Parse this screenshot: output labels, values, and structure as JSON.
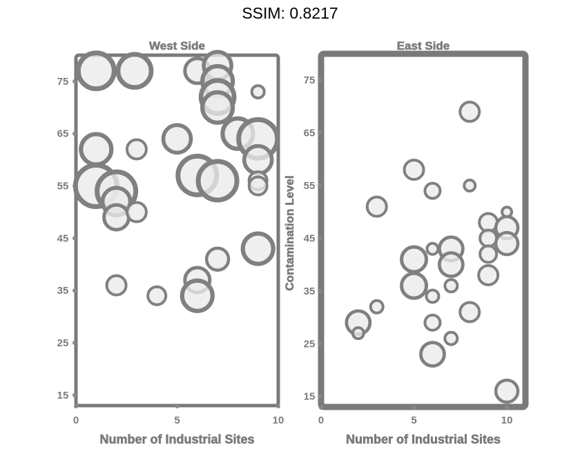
{
  "header": {
    "title": "SSIM: 0.8217"
  },
  "colors": {
    "bubble_fill": "#ebebeb",
    "bubble_stroke": "#808080",
    "axis": "#7a7a7a",
    "background": "#ffffff"
  },
  "chart_data": [
    {
      "type": "scatter",
      "title": "West Side",
      "xlabel": "Number of Industrial Sites",
      "ylabel": "",
      "xlim": [
        0,
        10
      ],
      "ylim": [
        13,
        80
      ],
      "x_ticks": [
        0,
        5,
        10
      ],
      "y_ticks": [
        "15",
        "25",
        "35",
        "45",
        "55",
        "65",
        "75"
      ],
      "grid": false,
      "series": [
        {
          "points": [
            {
              "x": 1.0,
              "y": 77,
              "size": 26
            },
            {
              "x": 2.9,
              "y": 77,
              "size": 24
            },
            {
              "x": 6.0,
              "y": 77,
              "size": 18
            },
            {
              "x": 7.0,
              "y": 78,
              "size": 20
            },
            {
              "x": 7.0,
              "y": 75,
              "size": 22
            },
            {
              "x": 9.0,
              "y": 73,
              "size": 9
            },
            {
              "x": 7.0,
              "y": 72,
              "size": 24
            },
            {
              "x": 7.0,
              "y": 70,
              "size": 22
            },
            {
              "x": 8.0,
              "y": 65,
              "size": 22
            },
            {
              "x": 9.0,
              "y": 64,
              "size": 28
            },
            {
              "x": 5.0,
              "y": 64,
              "size": 20
            },
            {
              "x": 1.0,
              "y": 62,
              "size": 22
            },
            {
              "x": 3.0,
              "y": 62,
              "size": 14
            },
            {
              "x": 9.0,
              "y": 60,
              "size": 20
            },
            {
              "x": 6.0,
              "y": 57,
              "size": 28
            },
            {
              "x": 7.0,
              "y": 56,
              "size": 28
            },
            {
              "x": 9.0,
              "y": 56,
              "size": 13
            },
            {
              "x": 9.0,
              "y": 55,
              "size": 13
            },
            {
              "x": 1.0,
              "y": 55,
              "size": 30
            },
            {
              "x": 2.0,
              "y": 54,
              "size": 28
            },
            {
              "x": 2.0,
              "y": 52,
              "size": 20
            },
            {
              "x": 2.0,
              "y": 49,
              "size": 18
            },
            {
              "x": 3.0,
              "y": 50,
              "size": 14
            },
            {
              "x": 9.0,
              "y": 43,
              "size": 22
            },
            {
              "x": 7.0,
              "y": 41,
              "size": 16
            },
            {
              "x": 6.0,
              "y": 37,
              "size": 18
            },
            {
              "x": 2.0,
              "y": 36,
              "size": 14
            },
            {
              "x": 6.0,
              "y": 34,
              "size": 22
            },
            {
              "x": 4.0,
              "y": 34,
              "size": 13
            }
          ]
        }
      ]
    },
    {
      "type": "scatter",
      "title": "East Side",
      "xlabel": "Number of Industrial Sites",
      "ylabel": "Contamination Level",
      "xlim": [
        0,
        11
      ],
      "ylim": [
        13,
        80
      ],
      "x_ticks": [
        0,
        5,
        10
      ],
      "y_ticks": [
        "15",
        "25",
        "35",
        "45",
        "55",
        "65",
        "75"
      ],
      "grid": false,
      "series": [
        {
          "points": [
            {
              "x": 8.0,
              "y": 69,
              "size": 14
            },
            {
              "x": 5.0,
              "y": 58,
              "size": 14
            },
            {
              "x": 6.0,
              "y": 54,
              "size": 11
            },
            {
              "x": 8.0,
              "y": 55,
              "size": 8
            },
            {
              "x": 3.0,
              "y": 51,
              "size": 14
            },
            {
              "x": 10.0,
              "y": 50,
              "size": 7
            },
            {
              "x": 9.0,
              "y": 48,
              "size": 13
            },
            {
              "x": 10.0,
              "y": 47,
              "size": 16
            },
            {
              "x": 9.0,
              "y": 45,
              "size": 12
            },
            {
              "x": 10.0,
              "y": 44,
              "size": 16
            },
            {
              "x": 6.0,
              "y": 43,
              "size": 8
            },
            {
              "x": 7.0,
              "y": 43,
              "size": 17
            },
            {
              "x": 9.0,
              "y": 42,
              "size": 12
            },
            {
              "x": 5.0,
              "y": 41,
              "size": 18
            },
            {
              "x": 7.0,
              "y": 40,
              "size": 17
            },
            {
              "x": 9.0,
              "y": 38,
              "size": 14
            },
            {
              "x": 5.0,
              "y": 36,
              "size": 18
            },
            {
              "x": 7.0,
              "y": 36,
              "size": 9
            },
            {
              "x": 6.0,
              "y": 34,
              "size": 9
            },
            {
              "x": 3.0,
              "y": 32,
              "size": 9
            },
            {
              "x": 8.0,
              "y": 31,
              "size": 14
            },
            {
              "x": 2.0,
              "y": 29,
              "size": 17
            },
            {
              "x": 6.0,
              "y": 29,
              "size": 11
            },
            {
              "x": 2.0,
              "y": 27,
              "size": 8
            },
            {
              "x": 7.0,
              "y": 26,
              "size": 9
            },
            {
              "x": 6.0,
              "y": 23,
              "size": 17
            },
            {
              "x": 10.0,
              "y": 16,
              "size": 16
            }
          ]
        }
      ]
    }
  ]
}
